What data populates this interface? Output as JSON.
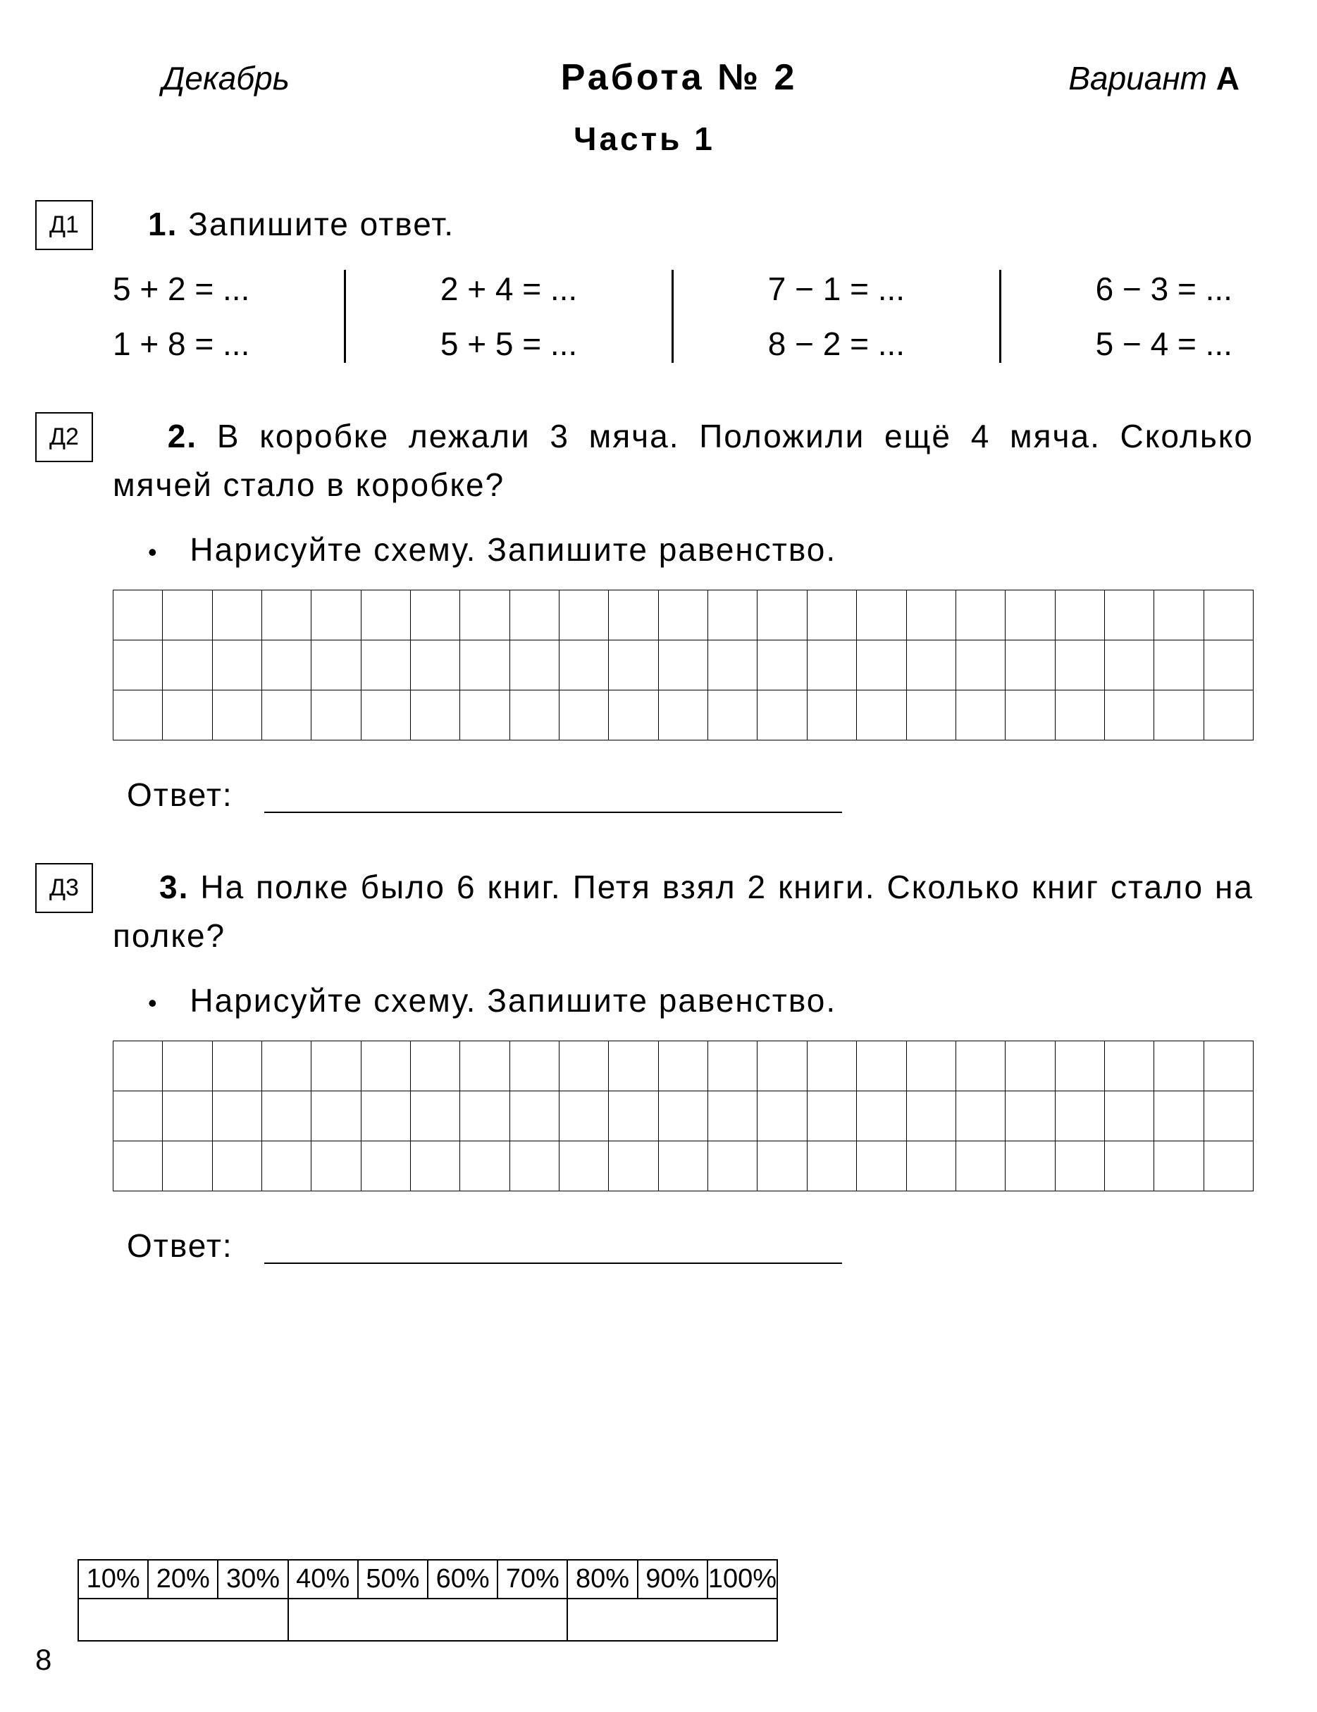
{
  "header": {
    "month": "Декабрь",
    "title": "Работа  №  2",
    "variant_label": "Вариант",
    "variant_letter": "А"
  },
  "part_title": "Часть  1",
  "tasks": [
    {
      "marker": "Д1",
      "number": "1.",
      "prompt": "Запишите  ответ.",
      "equations": [
        [
          "5 + 2 = ...",
          "1 + 8 = ..."
        ],
        [
          "2 + 4 = ...",
          "5 + 5 = ..."
        ],
        [
          "7 − 1 = ...",
          "8 − 2 = ..."
        ],
        [
          "6 − 3 = ...",
          "5 − 4 = ..."
        ]
      ]
    },
    {
      "marker": "Д2",
      "number": "2.",
      "prompt": "В коробке лежали 3 мяча. Положили ещё 4 мяча. Сколько мячей стало в коробке?",
      "bullet": "Нарисуйте  схему.  Запишите  равенство.",
      "grid": {
        "rows": 3,
        "cols": 23
      },
      "answer_label": "Ответ:"
    },
    {
      "marker": "Д3",
      "number": "3.",
      "prompt": "На полке было 6 книг. Петя взял 2 книги. Сколько книг стало на полке?",
      "bullet": "Нарисуйте  схему.  Запишите  равенство.",
      "grid": {
        "rows": 3,
        "cols": 23
      },
      "answer_label": "Ответ:"
    }
  ],
  "percent_row": [
    "10%",
    "20%",
    "30%",
    "40%",
    "50%",
    "60%",
    "70%",
    "80%",
    "90%",
    "100%"
  ],
  "page_number": "8",
  "bullet_char": "•",
  "colors": {
    "text": "#000000",
    "background": "#ffffff",
    "border": "#000000"
  }
}
